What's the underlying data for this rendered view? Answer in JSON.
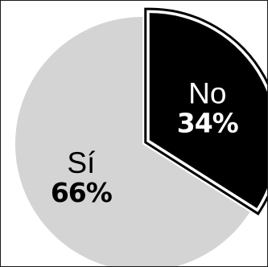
{
  "chart_data": {
    "type": "pie",
    "title": "",
    "slices": [
      {
        "label": "No",
        "value": 34,
        "value_label": "34%",
        "color": "#000000",
        "text_color": "#ffffff",
        "exploded": true
      },
      {
        "label": "Sí",
        "value": 66,
        "value_label": "66%",
        "color": "#d4d4d4",
        "text_color": "#000000",
        "exploded": false
      }
    ],
    "start_angle_deg": 0,
    "direction": "clockwise",
    "legend": "none"
  }
}
